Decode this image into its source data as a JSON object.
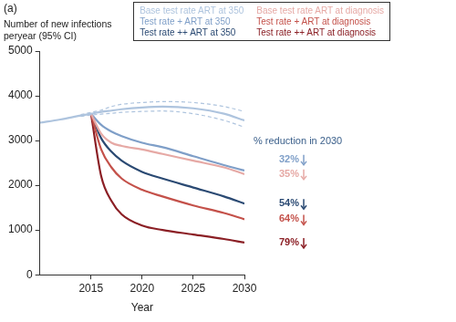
{
  "chart_data": {
    "type": "line",
    "title": "(a)",
    "y_label": "Number of new infections peryear (95% CI)",
    "x_label": "Year",
    "x": [
      2010,
      2012,
      2014,
      2015,
      2016,
      2017,
      2018,
      2020,
      2022,
      2025,
      2028,
      2030
    ],
    "xlim": [
      2010,
      2030
    ],
    "xticks": [
      2015,
      2020,
      2025,
      2030
    ],
    "ylim": [
      0,
      5000
    ],
    "yticks": [
      0,
      1000,
      2000,
      3000,
      4000,
      5000
    ],
    "grid": false,
    "legend": "upper right",
    "annotation_title": "% reduction in 2030",
    "series": [
      {
        "name": "Base test rate ART at 350",
        "color": "#aec4de",
        "values": [
          3400,
          3470,
          3560,
          3600,
          3640,
          3670,
          3700,
          3740,
          3760,
          3720,
          3600,
          3450
        ],
        "ci_lower": [
          null,
          null,
          3540,
          3570,
          3590,
          3610,
          3630,
          3650,
          3660,
          3600,
          3450,
          3300
        ],
        "ci_upper": [
          null,
          null,
          3580,
          3630,
          3680,
          3760,
          3810,
          3850,
          3870,
          3850,
          3760,
          3650
        ]
      },
      {
        "name": "Base test rate ART at diagnosis",
        "color": "#e6a9a5",
        "values": [
          null,
          null,
          null,
          3600,
          3150,
          2950,
          2880,
          2800,
          2700,
          2550,
          2400,
          2250
        ],
        "annotation": "35%"
      },
      {
        "name": "Test rate + ART at 350",
        "color": "#7f9fc8",
        "values": [
          null,
          null,
          null,
          3600,
          3350,
          3200,
          3100,
          2950,
          2850,
          2650,
          2450,
          2330
        ],
        "annotation": "32%"
      },
      {
        "name": "Test rate + ART at diagnosis",
        "color": "#c4514a",
        "values": [
          null,
          null,
          null,
          3600,
          2800,
          2400,
          2150,
          1900,
          1750,
          1550,
          1380,
          1240
        ],
        "annotation": "64%"
      },
      {
        "name": "Test rate ++ ART at 350",
        "color": "#2b4a73",
        "values": [
          null,
          null,
          null,
          3600,
          3050,
          2750,
          2550,
          2300,
          2150,
          1950,
          1750,
          1590
        ],
        "annotation": "54%"
      },
      {
        "name": "Test rate ++ ART at diagnosis",
        "color": "#8b1f25",
        "values": [
          null,
          null,
          null,
          3600,
          2200,
          1650,
          1350,
          1100,
          1000,
          900,
          800,
          720
        ],
        "annotation": "79%"
      }
    ]
  }
}
